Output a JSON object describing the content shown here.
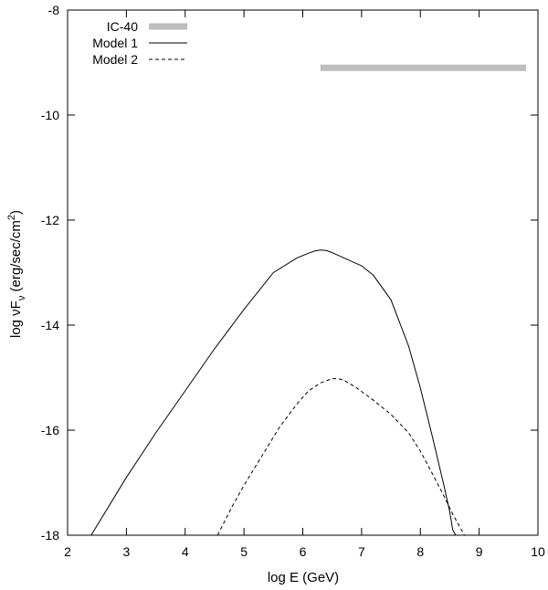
{
  "chart_data": {
    "type": "line",
    "xlabel": "log E (GeV)",
    "ylabel": {
      "prefix": "log ",
      "nu": "ν",
      "F": "F",
      "sub": "ν",
      "units_pre": " (erg/sec/cm",
      "sup": "2",
      "units_post": ")"
    },
    "xlim": [
      2,
      10
    ],
    "ylim": [
      -18,
      -8
    ],
    "x_ticks": [
      2,
      3,
      4,
      5,
      6,
      7,
      8,
      9,
      10
    ],
    "y_ticks": [
      -18,
      -16,
      -14,
      -12,
      -10,
      -8
    ],
    "grid": false,
    "legend_position": "top-left",
    "series": [
      {
        "name": "IC-40",
        "style": "thick-bar",
        "color": "#bdbdbd",
        "x": [
          6.3,
          9.8
        ],
        "y": [
          -9.1,
          -9.1
        ]
      },
      {
        "name": "Model 1",
        "style": "solid",
        "color": "#000000",
        "x": [
          2.4,
          3.0,
          3.5,
          4.0,
          4.5,
          5.0,
          5.5,
          5.9,
          6.1,
          6.2,
          6.3,
          6.4,
          6.5,
          6.7,
          7.0,
          7.2,
          7.5,
          7.8,
          8.0,
          8.2,
          8.4,
          8.5,
          8.55,
          8.6,
          8.6
        ],
        "y": [
          -18.0,
          -16.9,
          -16.05,
          -15.25,
          -14.45,
          -13.7,
          -13.0,
          -12.72,
          -12.63,
          -12.59,
          -12.57,
          -12.58,
          -12.62,
          -12.72,
          -12.87,
          -13.05,
          -13.52,
          -14.4,
          -15.2,
          -16.1,
          -17.05,
          -17.55,
          -17.9,
          -18.0,
          -18.0
        ]
      },
      {
        "name": "Model 2",
        "style": "dashed",
        "color": "#000000",
        "x": [
          4.55,
          4.8,
          5.0,
          5.3,
          5.6,
          5.9,
          6.1,
          6.3,
          6.5,
          6.6,
          6.7,
          6.9,
          7.2,
          7.5,
          7.8,
          8.0,
          8.2,
          8.4,
          8.55,
          8.65,
          8.75
        ],
        "y": [
          -18.0,
          -17.45,
          -17.05,
          -16.5,
          -15.95,
          -15.5,
          -15.25,
          -15.1,
          -15.02,
          -15.02,
          -15.05,
          -15.18,
          -15.43,
          -15.7,
          -16.05,
          -16.4,
          -16.82,
          -17.25,
          -17.6,
          -17.8,
          -18.0
        ]
      }
    ]
  }
}
